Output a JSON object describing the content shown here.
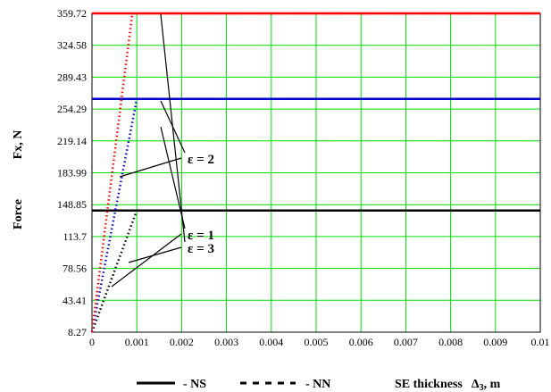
{
  "chart_data": {
    "type": "line",
    "ylabel_force": "Force",
    "ylabel_fx": "Fx, N",
    "xlabel_se": "SE thickness",
    "xlabel_delta": "Δ",
    "xlabel_sub": "3",
    "xlabel_unit": ", m",
    "xlim": [
      0,
      0.01
    ],
    "ylim": [
      8.27,
      359.72
    ],
    "x_ticks": [
      "0",
      "0.001",
      "0.002",
      "0.003",
      "0.004",
      "0.005",
      "0.006",
      "0.007",
      "0.008",
      "0.009",
      "0.01"
    ],
    "y_ticks": [
      "8.27",
      "43.41",
      "78.56",
      "113.7",
      "148.85",
      "183.99",
      "219.14",
      "254.29",
      "289.43",
      "324.58",
      "359.72"
    ],
    "grid": true,
    "legend": [
      {
        "label": "- NS",
        "style": "solid"
      },
      {
        "label": "- NN",
        "style": "dotted"
      }
    ],
    "series": [
      {
        "eps_label": "ε = 1",
        "color": "#000000",
        "solid": [
          [
            0,
            142.5
          ],
          [
            0.01,
            142.5
          ]
        ],
        "dotted": [
          [
            0,
            8.27
          ],
          [
            0.001,
            142.5
          ],
          [
            0.01,
            142.5
          ]
        ]
      },
      {
        "eps_label": "ε = 2",
        "color": "#0000cc",
        "solid": [
          [
            0,
            265.5
          ],
          [
            0.01,
            265.5
          ]
        ],
        "dotted": [
          [
            0,
            8.27
          ],
          [
            0.001,
            265.5
          ],
          [
            0.01,
            265.5
          ]
        ]
      },
      {
        "eps_label": "ε = 3",
        "color": "#ff0000",
        "solid": [
          [
            0,
            359.72
          ],
          [
            0.01,
            359.72
          ]
        ],
        "dotted": [
          [
            0,
            8.27
          ],
          [
            0.0009,
            359.72
          ],
          [
            0.01,
            359.72
          ]
        ]
      }
    ],
    "annotations": [
      {
        "text": "ε = 3",
        "at": [
          0.0019,
          294
        ]
      },
      {
        "text": "ε = 2",
        "at": [
          0.0019,
          182
        ]
      },
      {
        "text": "ε = 1",
        "at": [
          0.0019,
          63
        ]
      }
    ]
  }
}
